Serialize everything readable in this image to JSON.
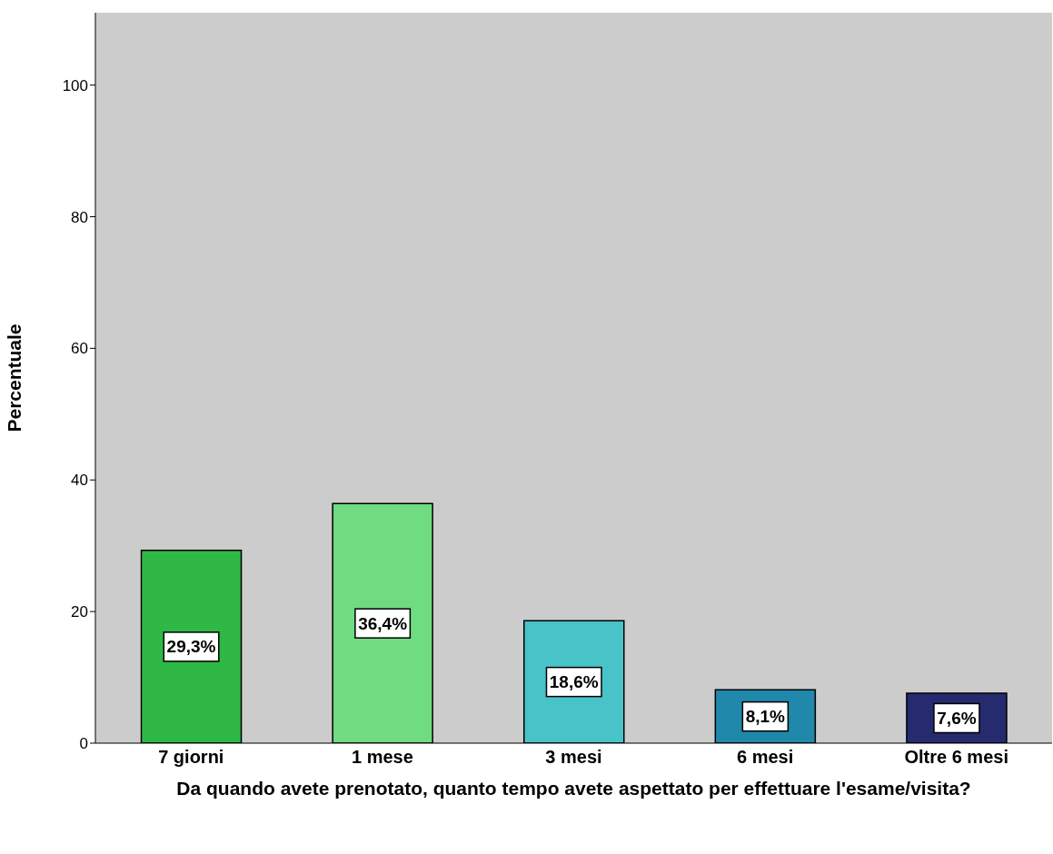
{
  "chart_data": {
    "type": "bar",
    "xlabel": "Da quando avete prenotato, quanto tempo avete aspettato per effettuare l'esame/visita?",
    "ylabel": "Percentuale",
    "categories": [
      "7 giorni",
      "1 mese",
      "3 mesi",
      "6 mesi",
      "Oltre 6 mesi"
    ],
    "values": [
      29.3,
      36.4,
      18.6,
      8.1,
      7.6
    ],
    "colors": [
      "#2fb846",
      "#6fdc82",
      "#48c3c8",
      "#2088aa",
      "#262a6e"
    ],
    "value_labels": [
      "29,3%",
      "36,4%",
      "18,6%",
      "8,1%",
      "7,6%"
    ],
    "ylim": [
      0,
      111
    ],
    "yticks": [
      0,
      20,
      40,
      60,
      80,
      100
    ],
    "grid": false,
    "legend": false
  }
}
